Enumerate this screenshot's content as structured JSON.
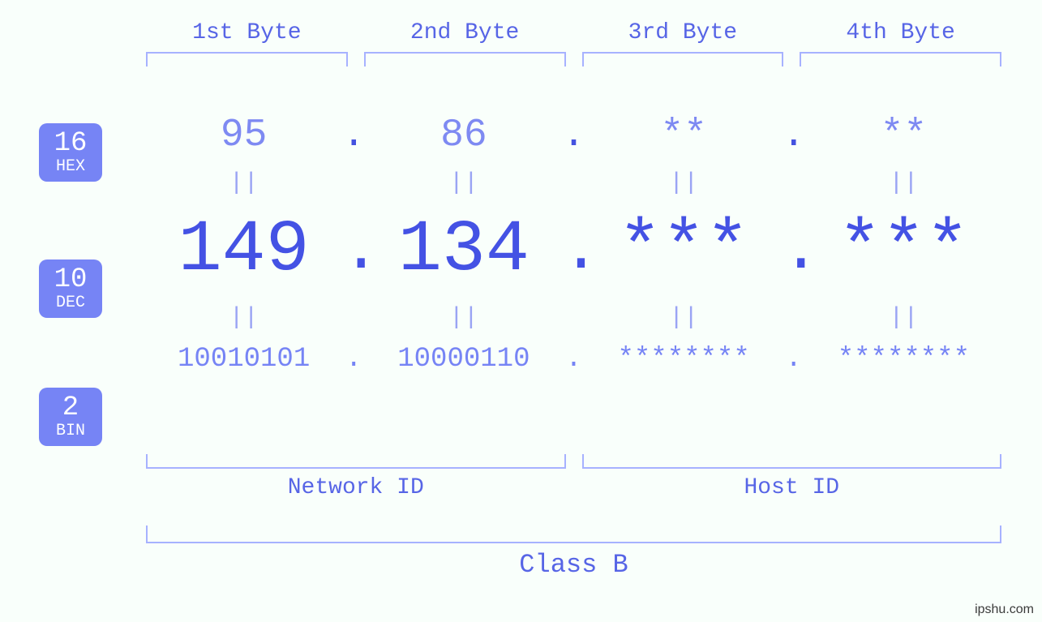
{
  "colors": {
    "background": "#f9fffb",
    "primary_text": "#4a5ee0",
    "light_text": "#7e8af2",
    "lighter_text": "#9aa4f4",
    "dec_text": "#4452e4",
    "bin_text": "#7684f5",
    "bracket": "#a7b2ff",
    "badge_bg": "#7684f5",
    "badge_fg": "#ffffff",
    "watermark": "#3b3b3b"
  },
  "fonts": {
    "family": "monospace",
    "byte_label_size": 28,
    "hex_size": 48,
    "dec_size": 90,
    "bin_size": 34,
    "eq_size": 30,
    "badge_num_size": 34,
    "badge_txt_size": 20,
    "low_label_size": 28,
    "class_label_size": 32
  },
  "byte_labels": [
    "1st Byte",
    "2nd Byte",
    "3rd Byte",
    "4th Byte"
  ],
  "bases": {
    "hex": {
      "num": "16",
      "txt": "HEX"
    },
    "dec": {
      "num": "10",
      "txt": "DEC"
    },
    "bin": {
      "num": "2",
      "txt": "BIN"
    }
  },
  "ip": {
    "hex": [
      "95",
      "86",
      "**",
      "**"
    ],
    "dec": [
      "149",
      "134",
      "***",
      "***"
    ],
    "bin": [
      "10010101",
      "10000110",
      "********",
      "********"
    ]
  },
  "equals": "||",
  "separator": ".",
  "lower": {
    "network": "Network ID",
    "host": "Host ID"
  },
  "class_label": "Class B",
  "watermark": "ipshu.com"
}
